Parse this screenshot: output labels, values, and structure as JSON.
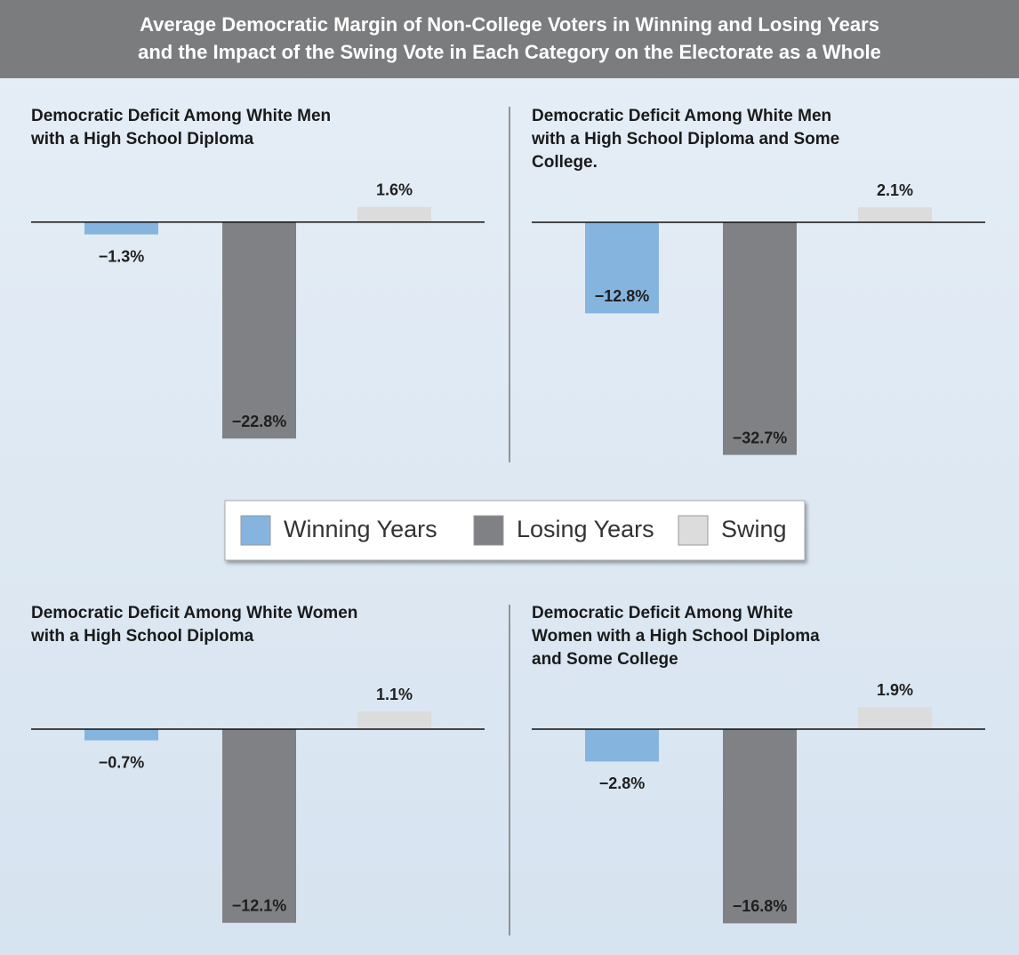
{
  "title": [
    "Average Democratic Margin of Non-College Voters in Winning and Losing Years",
    "and the Impact of the Swing Vote in Each Category on the Electorate as a Whole"
  ],
  "legend": [
    {
      "name": "Winning Years",
      "color": "#85b4de"
    },
    {
      "name": "Losing Years",
      "color": "#808184"
    },
    {
      "name": "Swing",
      "color": "#dcdcdc"
    }
  ],
  "chart_data": [
    {
      "type": "bar",
      "title": [
        "Democratic Deficit Among White Men",
        "with a High School Diploma"
      ],
      "values": [
        -1.3,
        -22.8,
        1.6
      ],
      "value_labels": [
        "−1.3%",
        "−22.8%",
        "1.6%"
      ],
      "ylim": [
        -24,
        4
      ]
    },
    {
      "type": "bar",
      "title": [
        "Democratic Deficit Among White Men",
        "with a High School Diploma and Some",
        "College."
      ],
      "values": [
        -12.8,
        -32.7,
        2.1
      ],
      "value_labels": [
        "−12.8%",
        "−32.7%",
        "2.1%"
      ],
      "ylim": [
        -34,
        5
      ]
    },
    {
      "type": "bar",
      "title": [
        "Democratic Deficit Among White Women",
        "with a High School Diploma"
      ],
      "values": [
        -0.7,
        -12.1,
        1.1
      ],
      "value_labels": [
        "−0.7%",
        "−12.1%",
        "1.1%"
      ],
      "ylim": [
        -12.5,
        2
      ]
    },
    {
      "type": "bar",
      "title": [
        "Democratic Deficit Among White",
        "Women with a High School Diploma",
        "and Some College"
      ],
      "values": [
        -2.8,
        -16.8,
        1.9
      ],
      "value_labels": [
        "−2.8%",
        "−16.8%",
        "1.9%"
      ],
      "ylim": [
        -17.5,
        3
      ]
    }
  ]
}
